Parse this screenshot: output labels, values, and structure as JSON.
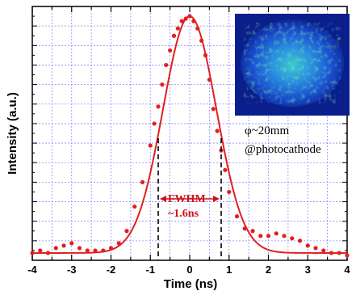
{
  "colors": {
    "data_red": "#e02020",
    "grid": "#8a8aff",
    "fwhm_red": "#d0101a",
    "inset_bg": "#0a1e8c"
  },
  "chart_data": {
    "type": "scatter",
    "xlabel": "Time (ns)",
    "ylabel": "Intensity (a.u.)",
    "xlim": [
      -4,
      4
    ],
    "ylim": [
      0,
      1.04
    ],
    "x_ticks": [
      -4,
      -3,
      -2,
      -1,
      0,
      1,
      2,
      3,
      4
    ],
    "x_tick_labels": [
      "-4",
      "-3",
      "-2",
      "-1",
      "0",
      "1",
      "2",
      "3",
      "4"
    ],
    "grid": true,
    "fit": {
      "shape": "gaussian",
      "center": 0,
      "fwhm_ns": 1.6,
      "amplitude": 1.0,
      "baseline": 0.03
    },
    "measured": {
      "x": [
        -4.0,
        -3.8,
        -3.6,
        -3.4,
        -3.2,
        -3.0,
        -2.8,
        -2.6,
        -2.4,
        -2.2,
        -2.0,
        -1.8,
        -1.6,
        -1.4,
        -1.2,
        -1.0,
        -0.9,
        -0.8,
        -0.7,
        -0.6,
        -0.5,
        -0.4,
        -0.3,
        -0.2,
        -0.1,
        0.0,
        0.1,
        0.2,
        0.3,
        0.4,
        0.5,
        0.6,
        0.7,
        0.8,
        0.9,
        1.0,
        1.2,
        1.4,
        1.6,
        1.8,
        2.0,
        2.2,
        2.4,
        2.6,
        2.8,
        3.0,
        3.2,
        3.4,
        3.6,
        3.8,
        4.0
      ],
      "y": [
        0.03,
        0.04,
        0.03,
        0.05,
        0.06,
        0.07,
        0.05,
        0.04,
        0.04,
        0.04,
        0.05,
        0.07,
        0.12,
        0.22,
        0.32,
        0.47,
        0.56,
        0.63,
        0.72,
        0.8,
        0.86,
        0.92,
        0.95,
        0.98,
        0.99,
        1.0,
        0.98,
        0.95,
        0.9,
        0.84,
        0.74,
        0.62,
        0.53,
        0.45,
        0.37,
        0.28,
        0.18,
        0.13,
        0.12,
        0.1,
        0.1,
        0.11,
        0.1,
        0.09,
        0.08,
        0.06,
        0.05,
        0.04,
        0.03,
        0.03,
        0.02
      ]
    },
    "annotations": {
      "fwhm_line1": "FWHM",
      "fwhm_line2": "~1.6ns",
      "fwhm_bounds": [
        -0.8,
        0.8
      ],
      "inset_line1": "φ~20mm",
      "inset_line2": "@photocathode"
    }
  }
}
